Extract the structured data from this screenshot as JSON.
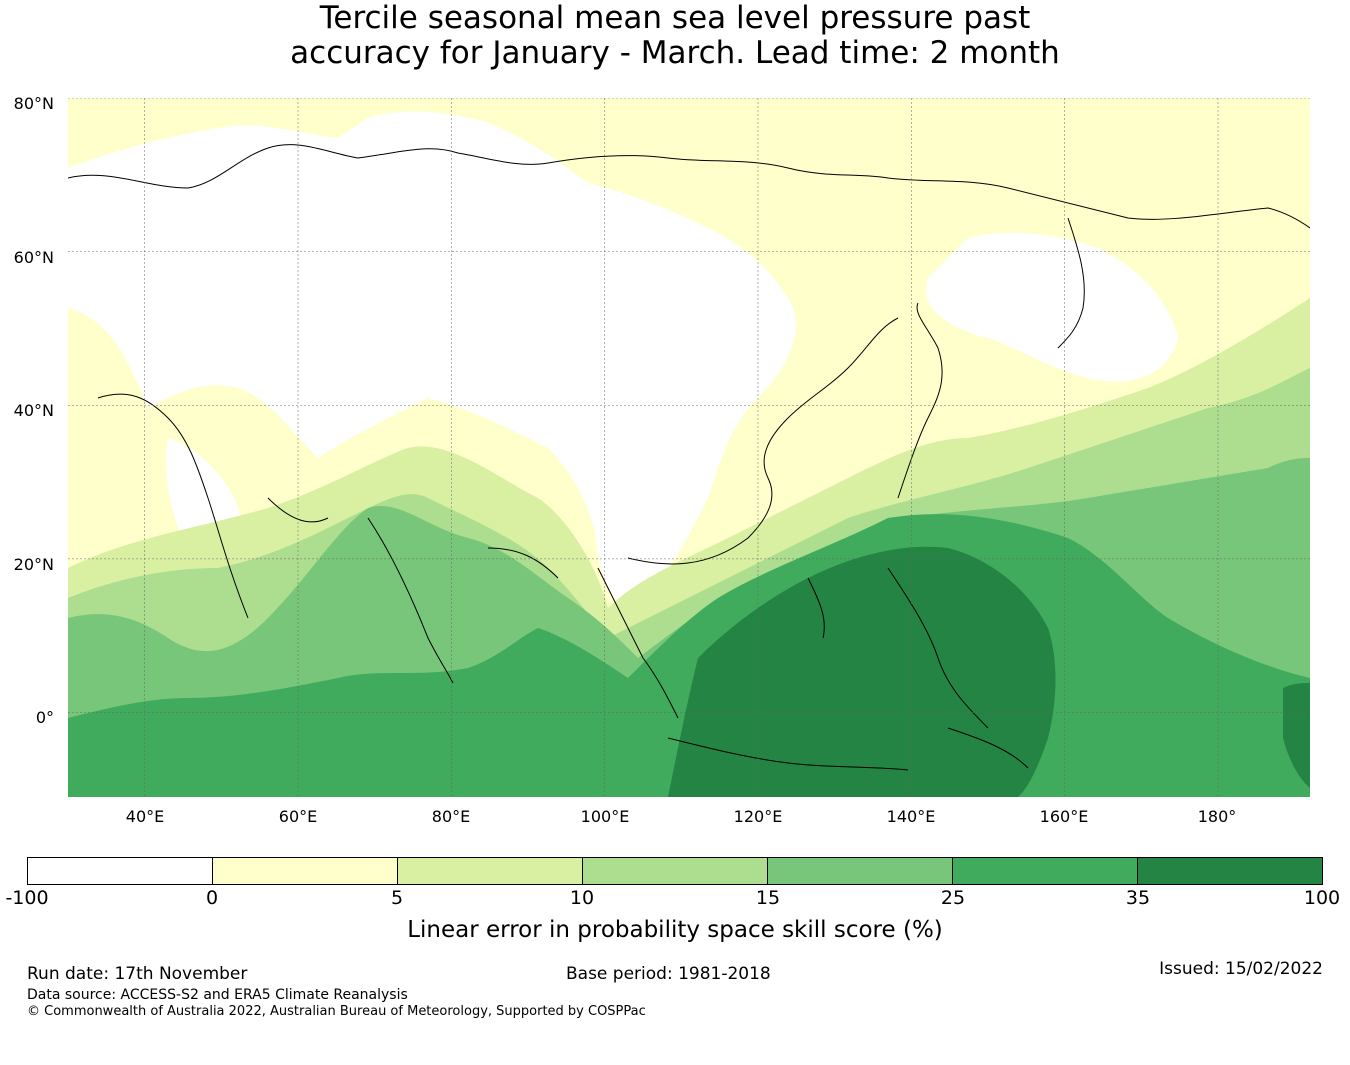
{
  "title": {
    "line1": "Tercile seasonal mean sea level pressure past",
    "line2": "accuracy for January - March. Lead time: 2 month"
  },
  "map": {
    "lat_labels": [
      "80°N",
      "60°N",
      "40°N",
      "20°N",
      "0°"
    ],
    "lon_labels": [
      "40°E",
      "60°E",
      "80°E",
      "100°E",
      "120°E",
      "140°E",
      "160°E",
      "180°"
    ],
    "lat_values": [
      80,
      60,
      40,
      20,
      0
    ],
    "lon_values": [
      40,
      60,
      80,
      100,
      120,
      140,
      160,
      180
    ],
    "extent": {
      "lon_min": 30,
      "lon_max": 192,
      "lat_min": -11,
      "lat_max": 80
    }
  },
  "colorbar": {
    "ticks": [
      "-100",
      "0",
      "5",
      "10",
      "15",
      "25",
      "35",
      "100"
    ],
    "colors": [
      "#ffffff",
      "#ffffcc",
      "#d9f0a3",
      "#addd8e",
      "#78c679",
      "#41ab5d",
      "#238443"
    ],
    "label": "Linear error in probability space skill score (%)"
  },
  "footer": {
    "run_date": "Run date: 17th November",
    "base_period": "Base period: 1981-2018",
    "issued": "Issued: 15/02/2022",
    "data_source": "Data source: ACCESS-S2 and ERA5 Climate Reanalysis",
    "copyright": "© Commonwealth of Australia 2022, Australian Bureau of Meteorology, Supported by COSPPac"
  }
}
